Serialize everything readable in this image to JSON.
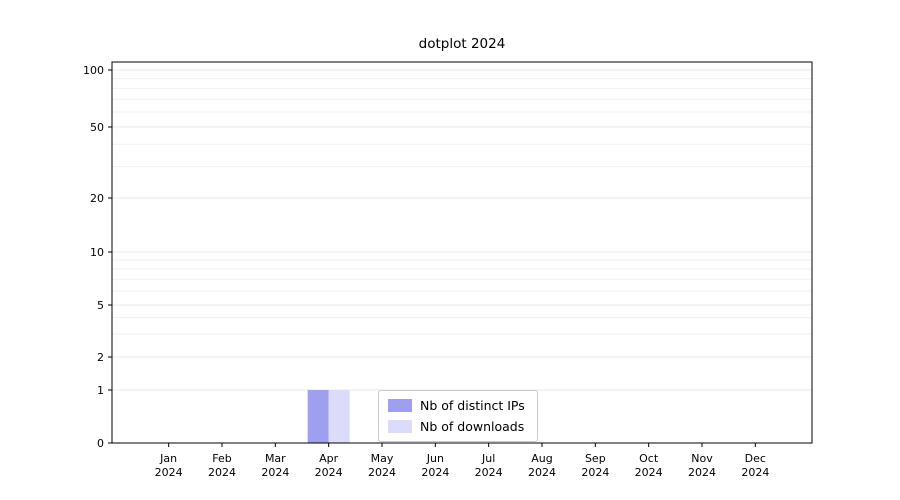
{
  "chart_data": {
    "type": "bar",
    "title": "dotplot 2024",
    "xlabel": "",
    "ylabel": "",
    "categories": [
      "Jan",
      "Feb",
      "Mar",
      "Apr",
      "May",
      "Jun",
      "Jul",
      "Aug",
      "Sep",
      "Oct",
      "Nov",
      "Dec"
    ],
    "year": "2024",
    "series": [
      {
        "name": "Nb of distinct IPs",
        "color": "#9f9ff0",
        "values": [
          0,
          0,
          0,
          1,
          0,
          0,
          0,
          0,
          0,
          0,
          0,
          0
        ]
      },
      {
        "name": "Nb of downloads",
        "color": "#dcdcfa",
        "values": [
          0,
          0,
          0,
          1,
          0,
          0,
          0,
          0,
          0,
          0,
          0,
          0
        ]
      }
    ],
    "yscale": "symlog",
    "yticks": [
      0,
      1,
      2,
      5,
      10,
      20,
      50,
      100
    ],
    "yminor": [
      3,
      4,
      6,
      7,
      8,
      9,
      30,
      40,
      60,
      70,
      80,
      90
    ],
    "ylim": [
      0,
      112
    ],
    "grid": true,
    "legend_position": "lower center"
  }
}
